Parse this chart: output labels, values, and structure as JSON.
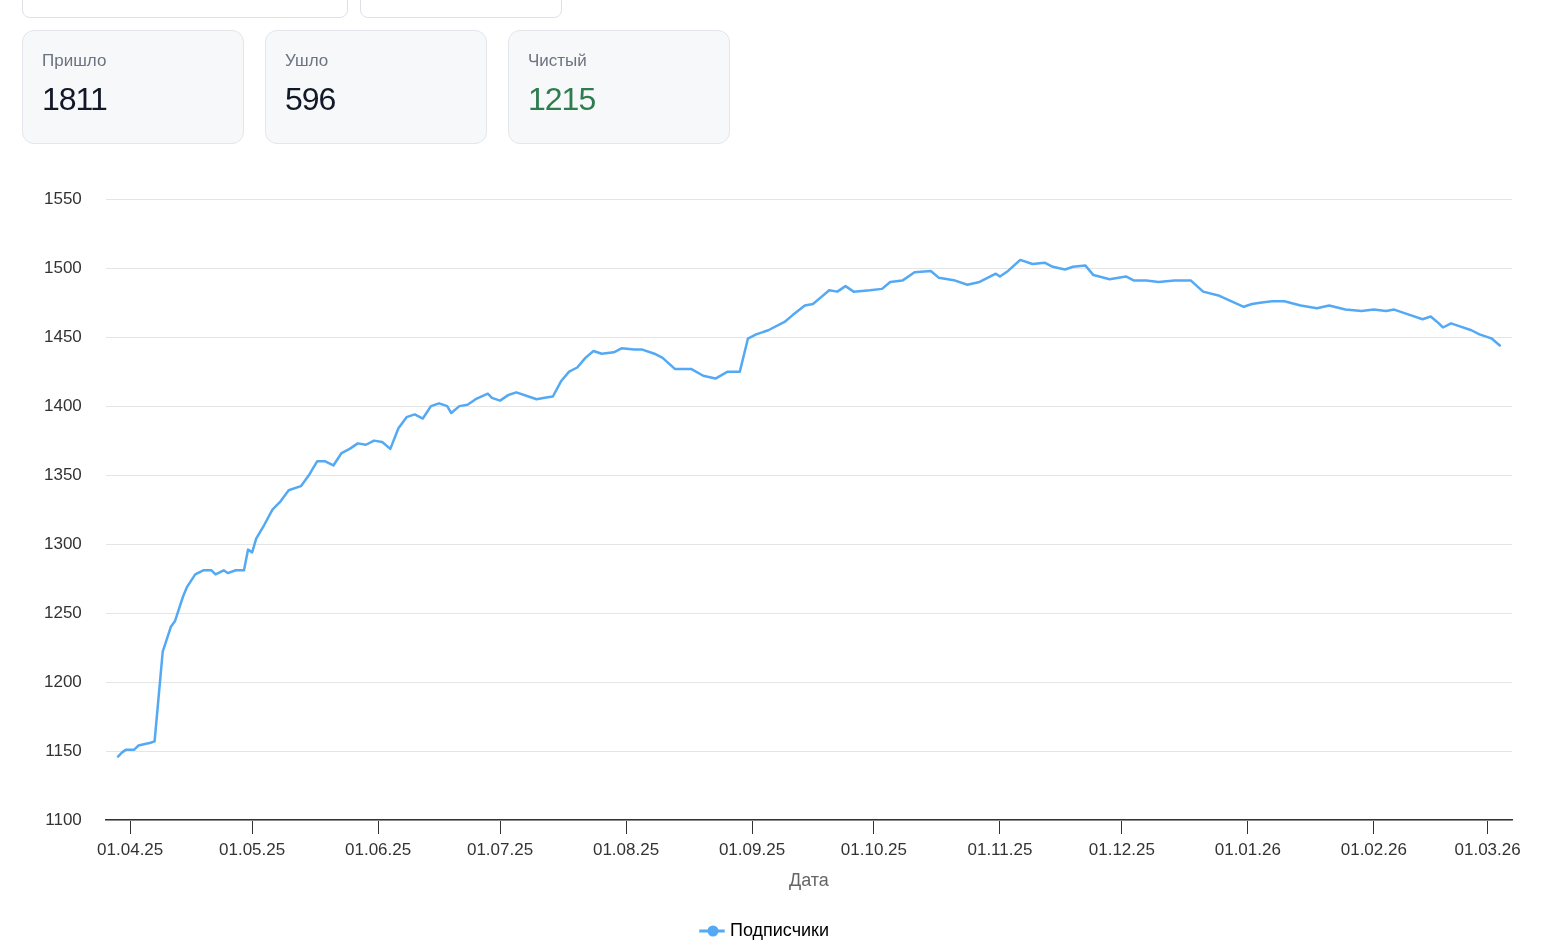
{
  "chart_data": [
    {
      "type": "other",
      "title": "Пришло",
      "annotations": [
        "1811"
      ]
    },
    {
      "type": "other",
      "title": "Ушло",
      "annotations": [
        "596"
      ]
    },
    {
      "type": "other",
      "title": "Чистый",
      "annotations": [
        "1215"
      ],
      "color": "#2e7d4f"
    },
    {
      "type": "line",
      "xlabel": "Дата",
      "grid": "y",
      "legend": "bottom",
      "marker": "none",
      "line_style": "solid",
      "xlim": [
        "2025-03-26",
        "2026-03-07"
      ],
      "xticks": [
        {
          "value": "2025-04-01",
          "label": "01.04.25"
        },
        {
          "value": "2025-05-01",
          "label": "01.05.25"
        },
        {
          "value": "2025-06-01",
          "label": "01.06.25"
        },
        {
          "value": "2025-07-01",
          "label": "01.07.25"
        },
        {
          "value": "2025-08-01",
          "label": "01.08.25"
        },
        {
          "value": "2025-09-01",
          "label": "01.09.25"
        },
        {
          "value": "2025-10-01",
          "label": "01.10.25"
        },
        {
          "value": "2025-11-01",
          "label": "01.11.25"
        },
        {
          "value": "2025-12-01",
          "label": "01.12.25"
        },
        {
          "value": "2026-01-01",
          "label": "01.01.26"
        },
        {
          "value": "2026-02-01",
          "label": "01.02.26"
        },
        {
          "value": "2026-03-01",
          "label": "01.03.26"
        }
      ],
      "ylim": [
        1100,
        1550
      ],
      "yticks": [
        1100,
        1150,
        1200,
        1250,
        1300,
        1350,
        1400,
        1450,
        1500,
        1550
      ],
      "x": [
        "2025-03-29",
        "2025-03-30",
        "2025-03-31",
        "2025-04-02",
        "2025-04-03",
        "2025-04-06",
        "2025-04-07",
        "2025-04-09",
        "2025-04-11",
        "2025-04-12",
        "2025-04-14",
        "2025-04-15",
        "2025-04-17",
        "2025-04-19",
        "2025-04-21",
        "2025-04-22",
        "2025-04-24",
        "2025-04-25",
        "2025-04-27",
        "2025-04-29",
        "2025-04-30",
        "2025-05-01",
        "2025-05-02",
        "2025-05-04",
        "2025-05-06",
        "2025-05-08",
        "2025-05-10",
        "2025-05-13",
        "2025-05-15",
        "2025-05-16",
        "2025-05-17",
        "2025-05-19",
        "2025-05-21",
        "2025-05-23",
        "2025-05-25",
        "2025-05-27",
        "2025-05-29",
        "2025-05-31",
        "2025-06-02",
        "2025-06-04",
        "2025-06-06",
        "2025-06-08",
        "2025-06-10",
        "2025-06-12",
        "2025-06-14",
        "2025-06-16",
        "2025-06-18",
        "2025-06-19",
        "2025-06-21",
        "2025-06-23",
        "2025-06-25",
        "2025-06-28",
        "2025-06-29",
        "2025-07-01",
        "2025-07-03",
        "2025-07-05",
        "2025-07-08",
        "2025-07-10",
        "2025-07-12",
        "2025-07-14",
        "2025-07-16",
        "2025-07-18",
        "2025-07-20",
        "2025-07-22",
        "2025-07-24",
        "2025-07-26",
        "2025-07-29",
        "2025-07-31",
        "2025-08-03",
        "2025-08-05",
        "2025-08-08",
        "2025-08-10",
        "2025-08-13",
        "2025-08-17",
        "2025-08-20",
        "2025-08-23",
        "2025-08-26",
        "2025-08-29",
        "2025-08-31",
        "2025-09-02",
        "2025-09-05",
        "2025-09-09",
        "2025-09-11",
        "2025-09-14",
        "2025-09-16",
        "2025-09-18",
        "2025-09-20",
        "2025-09-22",
        "2025-09-24",
        "2025-09-26",
        "2025-09-30",
        "2025-10-03",
        "2025-10-05",
        "2025-10-08",
        "2025-10-11",
        "2025-10-15",
        "2025-10-17",
        "2025-10-21",
        "2025-10-24",
        "2025-10-27",
        "2025-10-31",
        "2025-11-01",
        "2025-11-03",
        "2025-11-06",
        "2025-11-09",
        "2025-11-12",
        "2025-11-14",
        "2025-11-17",
        "2025-11-19",
        "2025-11-22",
        "2025-11-24",
        "2025-11-28",
        "2025-12-02",
        "2025-12-04",
        "2025-12-07",
        "2025-12-10",
        "2025-12-14",
        "2025-12-18",
        "2025-12-21",
        "2025-12-25",
        "2025-12-28",
        "2025-12-31",
        "2026-01-02",
        "2026-01-04",
        "2026-01-07",
        "2026-01-10",
        "2026-01-14",
        "2026-01-18",
        "2026-01-21",
        "2026-01-25",
        "2026-01-29",
        "2026-02-01",
        "2026-02-04",
        "2026-02-06",
        "2026-02-10",
        "2026-02-13",
        "2026-02-15",
        "2026-02-17",
        "2026-02-18",
        "2026-02-20",
        "2026-02-22",
        "2026-02-25",
        "2026-02-27",
        "2026-03-01",
        "2026-03-02",
        "2026-03-04"
      ],
      "series": [
        {
          "name": "Подписчики",
          "color": "#54a9f5",
          "values": [
            1146,
            1149,
            1151,
            1151,
            1154,
            1156,
            1157,
            1222,
            1240,
            1244,
            1262,
            1269,
            1278,
            1281,
            1281,
            1278,
            1281,
            1279,
            1281,
            1281,
            1296,
            1294,
            1304,
            1314,
            1325,
            1331,
            1339,
            1342,
            1350,
            1355,
            1360,
            1360,
            1357,
            1366,
            1369,
            1373,
            1372,
            1375,
            1374,
            1369,
            1384,
            1392,
            1394,
            1391,
            1400,
            1402,
            1400,
            1395,
            1400,
            1401,
            1405,
            1409,
            1406,
            1404,
            1408,
            1410,
            1407,
            1405,
            1406,
            1407,
            1418,
            1425,
            1428,
            1435,
            1440,
            1438,
            1439,
            1442,
            1441,
            1441,
            1438,
            1435,
            1427,
            1427,
            1422,
            1420,
            1425,
            1425,
            1449,
            1452,
            1455,
            1461,
            1466,
            1473,
            1474,
            1479,
            1484,
            1483,
            1487,
            1483,
            1484,
            1485,
            1490,
            1491,
            1497,
            1498,
            1493,
            1491,
            1488,
            1490,
            1496,
            1494,
            1498,
            1506,
            1503,
            1504,
            1501,
            1499,
            1501,
            1502,
            1495,
            1492,
            1494,
            1491,
            1491,
            1490,
            1491,
            1491,
            1483,
            1480,
            1476,
            1472,
            1474,
            1475,
            1476,
            1476,
            1473,
            1471,
            1473,
            1470,
            1469,
            1470,
            1469,
            1470,
            1466,
            1463,
            1465,
            1460,
            1457,
            1460,
            1458,
            1455,
            1452,
            1450,
            1449,
            1444
          ]
        }
      ]
    }
  ]
}
